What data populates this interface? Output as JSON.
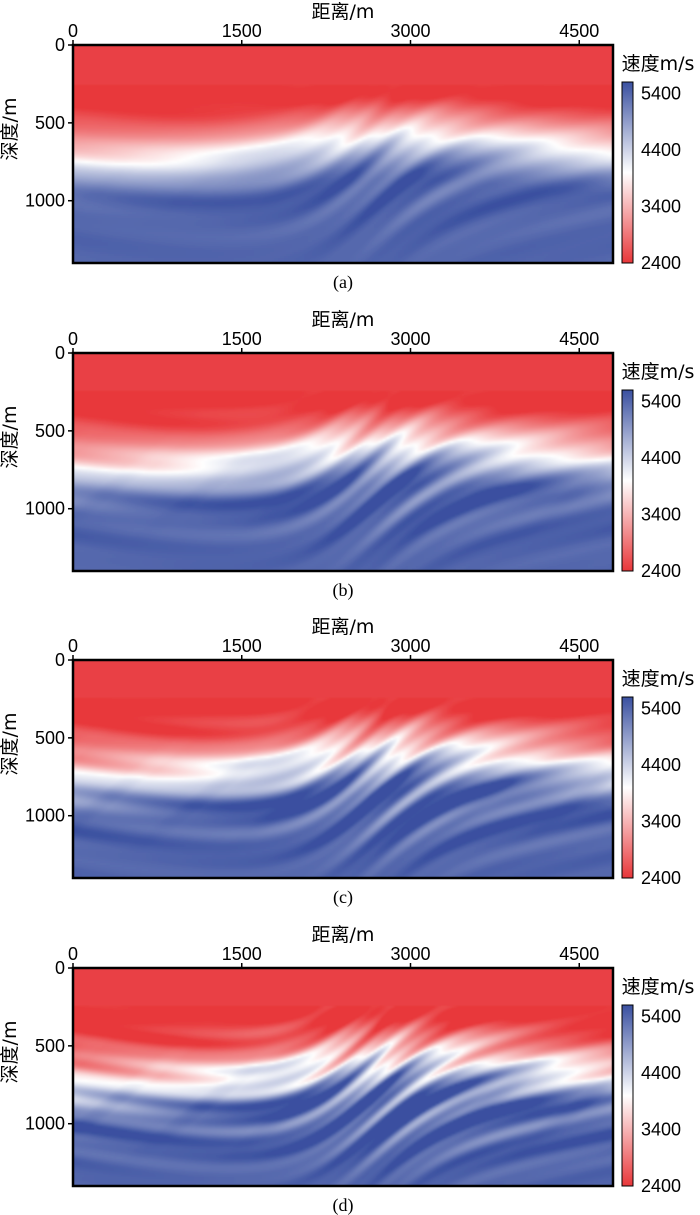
{
  "chart_data": [
    {
      "type": "heatmap",
      "caption": "(a)",
      "xlabel": "距离/m",
      "ylabel": "深度/m",
      "colorbar_label": "速度m/s",
      "xlim": [
        0,
        4800
      ],
      "ylim": [
        1400,
        0
      ],
      "xticks": [
        "0",
        "1500",
        "3000",
        "4500"
      ],
      "yticks": [
        "0",
        "500",
        "1000"
      ],
      "colorbar_ticks": [
        "5400",
        "4400",
        "3400",
        "2400"
      ],
      "clim": [
        2400,
        5600
      ],
      "colormap": [
        "#e8373a",
        "#ffffff",
        "#3a50a0"
      ],
      "water_bottom_depth": 260,
      "detail": 0.15
    },
    {
      "type": "heatmap",
      "caption": "(b)",
      "xlabel": "距离/m",
      "ylabel": "深度/m",
      "colorbar_label": "速度m/s",
      "xlim": [
        0,
        4800
      ],
      "ylim": [
        1400,
        0
      ],
      "xticks": [
        "0",
        "1500",
        "3000",
        "4500"
      ],
      "yticks": [
        "0",
        "500",
        "1000"
      ],
      "colorbar_ticks": [
        "5400",
        "4400",
        "3400",
        "2400"
      ],
      "clim": [
        2400,
        5600
      ],
      "colormap": [
        "#e8373a",
        "#ffffff",
        "#3a50a0"
      ],
      "water_bottom_depth": 240,
      "detail": 0.45
    },
    {
      "type": "heatmap",
      "caption": "(c)",
      "xlabel": "距离/m",
      "ylabel": "深度/m",
      "colorbar_label": "速度m/s",
      "xlim": [
        0,
        4800
      ],
      "ylim": [
        1400,
        0
      ],
      "xticks": [
        "0",
        "1500",
        "3000",
        "4500"
      ],
      "yticks": [
        "0",
        "500",
        "1000"
      ],
      "colorbar_ticks": [
        "5400",
        "4400",
        "3400",
        "2400"
      ],
      "clim": [
        2400,
        5600
      ],
      "colormap": [
        "#e8373a",
        "#ffffff",
        "#3a50a0"
      ],
      "water_bottom_depth": 240,
      "detail": 0.7
    },
    {
      "type": "heatmap",
      "caption": "(d)",
      "xlabel": "距离/m",
      "ylabel": "深度/m",
      "colorbar_label": "速度m/s",
      "xlim": [
        0,
        4800
      ],
      "ylim": [
        1400,
        0
      ],
      "xticks": [
        "0",
        "1500",
        "3000",
        "4500"
      ],
      "yticks": [
        "0",
        "500",
        "1000"
      ],
      "colorbar_ticks": [
        "5400",
        "4400",
        "3400",
        "2400"
      ],
      "clim": [
        2400,
        5600
      ],
      "colormap": [
        "#e8373a",
        "#ffffff",
        "#3a50a0"
      ],
      "water_bottom_depth": 240,
      "detail": 1.0
    }
  ]
}
